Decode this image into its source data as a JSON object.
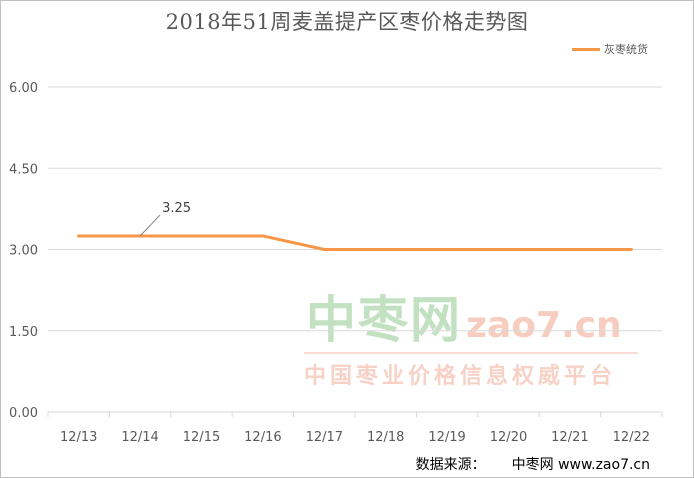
{
  "chart_data": {
    "type": "line",
    "title": "2018年51周麦盖提产区枣价格走势图",
    "categories": [
      "12/13",
      "12/14",
      "12/15",
      "12/16",
      "12/17",
      "12/18",
      "12/19",
      "12/20",
      "12/21",
      "12/22"
    ],
    "series": [
      {
        "name": "灰枣统货",
        "color": "#f79646",
        "values": [
          3.25,
          3.25,
          3.25,
          3.25,
          3.0,
          3.0,
          3.0,
          3.0,
          3.0,
          3.0
        ]
      }
    ],
    "data_labels": [
      {
        "index": 1,
        "text": "3.25"
      }
    ],
    "yticks": [
      "0.00",
      "1.50",
      "3.00",
      "4.50",
      "6.00"
    ],
    "ylim": [
      0,
      6
    ],
    "grid": true,
    "legend_position": "top-right"
  },
  "source": {
    "label": "数据来源：",
    "name": "中枣网",
    "url": "www.zao7.cn"
  },
  "watermark": {
    "cn": "中枣网",
    "en": "zao7.cn",
    "slogan": "中国枣业价格信息权威平台"
  },
  "colors": {
    "grid": "#d9d9d9",
    "axis_text": "#595959",
    "line": "#f79646"
  }
}
